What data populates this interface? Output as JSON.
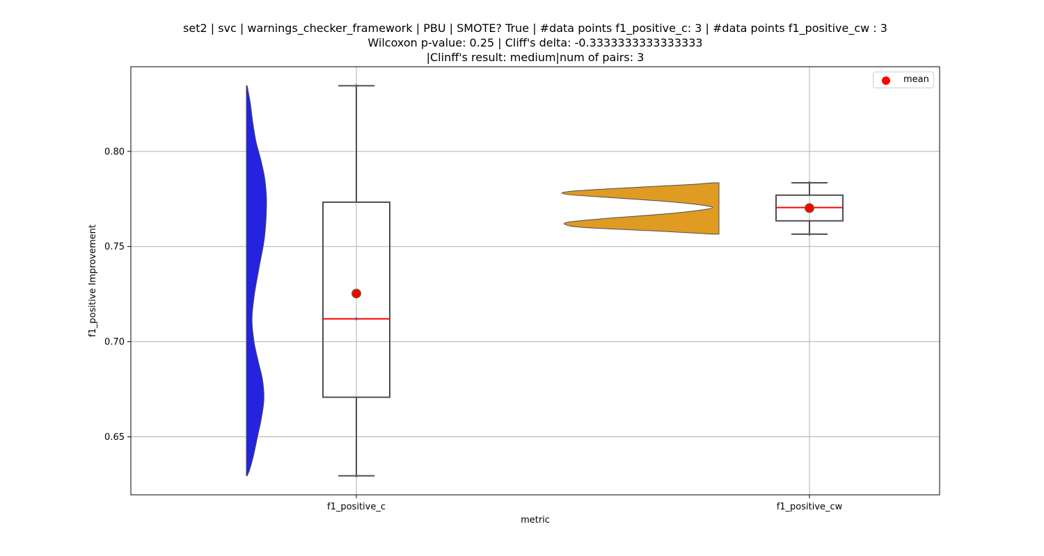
{
  "chart_data": {
    "type": "box",
    "title_lines": [
      "set2 | svc | warnings_checker_framework | PBU | SMOTE? True | #data points f1_positive_c: 3 | #data points f1_positive_cw : 3",
      "Wilcoxon p-value: 0.25 | Cliff's delta: -0.3333333333333333",
      "|Clinff's result: medium|num of pairs: 3"
    ],
    "xlabel": "metric",
    "ylabel": "f1_positive Improvement",
    "categories": [
      "f1_positive_c",
      "f1_positive_cw"
    ],
    "ylim": [
      0.6195,
      0.8445
    ],
    "yticks": [
      0.65,
      0.7,
      0.75,
      0.8
    ],
    "ytick_labels": [
      "0.65",
      "0.70",
      "0.75",
      "0.80"
    ],
    "grid": true,
    "legend": {
      "entries": [
        "mean"
      ],
      "placement": "top-right"
    },
    "colors": {
      "violin_c": "#2323e0",
      "violin_cw": "#e09b23",
      "median": "#ff0000",
      "mean": "#ff0000",
      "box_edge": "#4d4d4d",
      "grid": "#b0b0b0"
    },
    "series": [
      {
        "category": "f1_positive_c",
        "points": [
          0.6295,
          0.712,
          0.8345
        ],
        "min": 0.6295,
        "q1": 0.6708,
        "median": 0.712,
        "q3": 0.7733,
        "max": 0.8345,
        "mean": 0.7253,
        "violin": [
          [
            0.6295,
            0.04
          ],
          [
            0.633,
            0.17
          ],
          [
            0.64,
            0.35
          ],
          [
            0.65,
            0.55
          ],
          [
            0.66,
            0.75
          ],
          [
            0.67,
            0.87
          ],
          [
            0.68,
            0.8
          ],
          [
            0.69,
            0.58
          ],
          [
            0.7,
            0.38
          ],
          [
            0.712,
            0.28
          ],
          [
            0.725,
            0.4
          ],
          [
            0.74,
            0.65
          ],
          [
            0.755,
            0.9
          ],
          [
            0.773,
            1.0
          ],
          [
            0.785,
            0.92
          ],
          [
            0.795,
            0.73
          ],
          [
            0.805,
            0.48
          ],
          [
            0.815,
            0.32
          ],
          [
            0.825,
            0.2
          ],
          [
            0.8345,
            0.04
          ]
        ]
      },
      {
        "category": "f1_positive_cw",
        "points": [
          0.7565,
          0.7705,
          0.7835
        ],
        "min": 0.7565,
        "q1": 0.7635,
        "median": 0.7705,
        "q3": 0.777,
        "max": 0.7835,
        "mean": 0.7702,
        "violin": [
          [
            0.7565,
            0.04
          ],
          [
            0.758,
            0.35
          ],
          [
            0.76,
            0.85
          ],
          [
            0.7615,
            0.97
          ],
          [
            0.763,
            0.94
          ],
          [
            0.765,
            0.68
          ],
          [
            0.767,
            0.36
          ],
          [
            0.769,
            0.13
          ],
          [
            0.7705,
            0.04
          ],
          [
            0.772,
            0.13
          ],
          [
            0.774,
            0.38
          ],
          [
            0.776,
            0.74
          ],
          [
            0.7775,
            0.97
          ],
          [
            0.779,
            0.94
          ],
          [
            0.781,
            0.55
          ],
          [
            0.7825,
            0.2
          ],
          [
            0.7835,
            0.04
          ]
        ]
      }
    ]
  }
}
